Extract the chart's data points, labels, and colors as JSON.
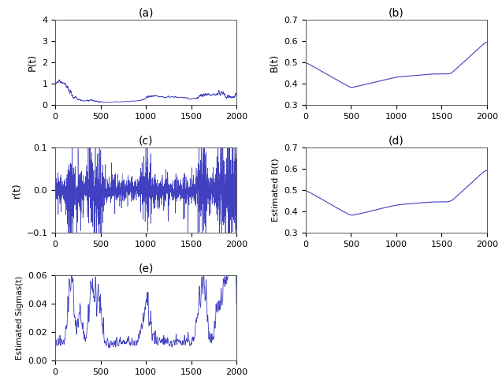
{
  "T": 2000,
  "title_a": "(a)",
  "title_b": "(b)",
  "title_c": "(c)",
  "title_d": "(d)",
  "title_e": "(e)",
  "ylabel_a": "P(t)",
  "ylabel_b": "B(t)",
  "ylabel_c": "r(t)",
  "ylabel_d": "Estimated B(t)",
  "ylabel_e": "Estimated Sigmas(t)",
  "xlim": [
    0,
    2000
  ],
  "ylim_a": [
    0,
    4
  ],
  "ylim_b": [
    0.3,
    0.7
  ],
  "ylim_c": [
    -0.1,
    0.1
  ],
  "ylim_d": [
    0.3,
    0.7
  ],
  "ylim_e": [
    0,
    0.06
  ],
  "line_color": "#4040C0",
  "bg_color": "#ffffff",
  "fig_width": 6.37,
  "fig_height": 4.97,
  "dpi": 100
}
